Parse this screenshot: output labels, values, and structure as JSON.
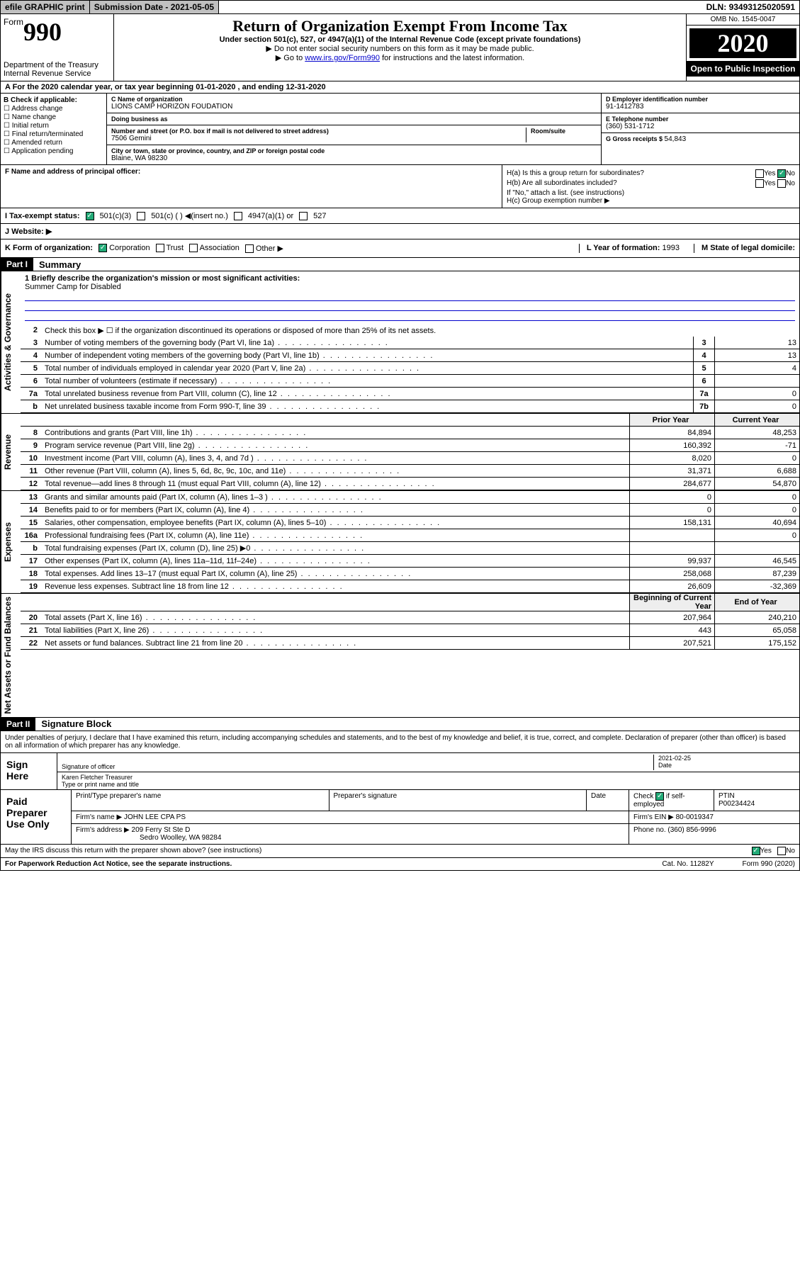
{
  "topbar": {
    "efile": "efile GRAPHIC print",
    "subdate_label": "Submission Date - ",
    "subdate": "2021-05-05",
    "dln_label": "DLN: ",
    "dln": "93493125020591"
  },
  "header": {
    "form_prefix": "Form",
    "form_number": "990",
    "dept": "Department of the Treasury",
    "irs": "Internal Revenue Service",
    "title": "Return of Organization Exempt From Income Tax",
    "subtitle": "Under section 501(c), 527, or 4947(a)(1) of the Internal Revenue Code (except private foundations)",
    "note1": "▶ Do not enter social security numbers on this form as it may be made public.",
    "note2_pre": "▶ Go to ",
    "note2_link": "www.irs.gov/Form990",
    "note2_post": " for instructions and the latest information.",
    "omb": "OMB No. 1545-0047",
    "year": "2020",
    "open": "Open to Public Inspection"
  },
  "rowA": "A For the 2020 calendar year, or tax year beginning 01-01-2020    , and ending 12-31-2020",
  "boxB": {
    "title": "B Check if applicable:",
    "items": [
      "Address change",
      "Name change",
      "Initial return",
      "Final return/terminated",
      "Amended return",
      "Application pending"
    ]
  },
  "boxC": {
    "name_lbl": "C Name of organization",
    "name": "LIONS CAMP HORIZON FOUDATION",
    "dba_lbl": "Doing business as",
    "dba": "",
    "street_lbl": "Number and street (or P.O. box if mail is not delivered to street address)",
    "room_lbl": "Room/suite",
    "street": "7506 Gemini",
    "city_lbl": "City or town, state or province, country, and ZIP or foreign postal code",
    "city": "Blaine, WA  98230"
  },
  "boxDE": {
    "d_lbl": "D Employer identification number",
    "d_val": "91-1412783",
    "e_lbl": "E Telephone number",
    "e_val": "(360) 531-1712",
    "g_lbl": "G Gross receipts $ ",
    "g_val": "54,843"
  },
  "boxF": {
    "lbl": "F Name and address of principal officer:",
    "val": ""
  },
  "boxH": {
    "ha": "H(a)  Is this a group return for subordinates?",
    "ha_yes": "Yes",
    "ha_no": "No",
    "hb": "H(b)  Are all subordinates included?",
    "hb_yes": "Yes",
    "hb_no": "No",
    "hb_note": "If \"No,\" attach a list. (see instructions)",
    "hc": "H(c)  Group exemption number ▶"
  },
  "rowI": {
    "lbl": "I   Tax-exempt status:",
    "opt1": "501(c)(3)",
    "opt2": "501(c) (   ) ◀(insert no.)",
    "opt3": "4947(a)(1) or",
    "opt4": "527"
  },
  "rowJ": "J   Website: ▶",
  "rowK": {
    "lbl": "K Form of organization:",
    "corp": "Corporation",
    "trust": "Trust",
    "assoc": "Association",
    "other": "Other ▶",
    "l_lbl": "L Year of formation: ",
    "l_val": "1993",
    "m_lbl": "M State of legal domicile:",
    "m_val": ""
  },
  "partI": {
    "label": "Part I",
    "title": "Summary"
  },
  "summary": {
    "side_gov": "Activities & Governance",
    "side_rev": "Revenue",
    "side_exp": "Expenses",
    "side_net": "Net Assets or Fund Balances",
    "l1_lbl": "1  Briefly describe the organization's mission or most significant activities:",
    "l1_val": "Summer Camp for Disabled",
    "l2": "Check this box ▶ ☐  if the organization discontinued its operations or disposed of more than 25% of its net assets.",
    "rows_gov": [
      {
        "n": "3",
        "t": "Number of voting members of the governing body (Part VI, line 1a)",
        "box": "3",
        "v": "13"
      },
      {
        "n": "4",
        "t": "Number of independent voting members of the governing body (Part VI, line 1b)",
        "box": "4",
        "v": "13"
      },
      {
        "n": "5",
        "t": "Total number of individuals employed in calendar year 2020 (Part V, line 2a)",
        "box": "5",
        "v": "4"
      },
      {
        "n": "6",
        "t": "Total number of volunteers (estimate if necessary)",
        "box": "6",
        "v": ""
      },
      {
        "n": "7a",
        "t": "Total unrelated business revenue from Part VIII, column (C), line 12",
        "box": "7a",
        "v": "0"
      },
      {
        "n": "b",
        "t": "Net unrelated business taxable income from Form 990-T, line 39",
        "box": "7b",
        "v": "0"
      }
    ],
    "yr_prior": "Prior Year",
    "yr_curr": "Current Year",
    "rows_rev": [
      {
        "n": "8",
        "t": "Contributions and grants (Part VIII, line 1h)",
        "p": "84,894",
        "c": "48,253"
      },
      {
        "n": "9",
        "t": "Program service revenue (Part VIII, line 2g)",
        "p": "160,392",
        "c": "-71"
      },
      {
        "n": "10",
        "t": "Investment income (Part VIII, column (A), lines 3, 4, and 7d )",
        "p": "8,020",
        "c": "0"
      },
      {
        "n": "11",
        "t": "Other revenue (Part VIII, column (A), lines 5, 6d, 8c, 9c, 10c, and 11e)",
        "p": "31,371",
        "c": "6,688"
      },
      {
        "n": "12",
        "t": "Total revenue—add lines 8 through 11 (must equal Part VIII, column (A), line 12)",
        "p": "284,677",
        "c": "54,870"
      }
    ],
    "rows_exp": [
      {
        "n": "13",
        "t": "Grants and similar amounts paid (Part IX, column (A), lines 1–3 )",
        "p": "0",
        "c": "0"
      },
      {
        "n": "14",
        "t": "Benefits paid to or for members (Part IX, column (A), line 4)",
        "p": "0",
        "c": "0"
      },
      {
        "n": "15",
        "t": "Salaries, other compensation, employee benefits (Part IX, column (A), lines 5–10)",
        "p": "158,131",
        "c": "40,694"
      },
      {
        "n": "16a",
        "t": "Professional fundraising fees (Part IX, column (A), line 11e)",
        "p": "",
        "c": "0"
      },
      {
        "n": "b",
        "t": "Total fundraising expenses (Part IX, column (D), line 25) ▶0",
        "p": "",
        "c": ""
      },
      {
        "n": "17",
        "t": "Other expenses (Part IX, column (A), lines 11a–11d, 11f–24e)",
        "p": "99,937",
        "c": "46,545"
      },
      {
        "n": "18",
        "t": "Total expenses. Add lines 13–17 (must equal Part IX, column (A), line 25)",
        "p": "258,068",
        "c": "87,239"
      },
      {
        "n": "19",
        "t": "Revenue less expenses. Subtract line 18 from line 12",
        "p": "26,609",
        "c": "-32,369"
      }
    ],
    "yr_begin": "Beginning of Current Year",
    "yr_end": "End of Year",
    "rows_net": [
      {
        "n": "20",
        "t": "Total assets (Part X, line 16)",
        "p": "207,964",
        "c": "240,210"
      },
      {
        "n": "21",
        "t": "Total liabilities (Part X, line 26)",
        "p": "443",
        "c": "65,058"
      },
      {
        "n": "22",
        "t": "Net assets or fund balances. Subtract line 21 from line 20",
        "p": "207,521",
        "c": "175,152"
      }
    ]
  },
  "partII": {
    "label": "Part II",
    "title": "Signature Block"
  },
  "penalty": "Under penalties of perjury, I declare that I have examined this return, including accompanying schedules and statements, and to the best of my knowledge and belief, it is true, correct, and complete. Declaration of preparer (other than officer) is based on all information of which preparer has any knowledge.",
  "sign": {
    "here": "Sign Here",
    "sig_lbl": "Signature of officer",
    "date_val": "2021-02-25",
    "date_lbl": "Date",
    "name": "Karen Fletcher Treasurer",
    "name_lbl": "Type or print name and title"
  },
  "prep": {
    "label": "Paid Preparer Use Only",
    "h1": "Print/Type preparer's name",
    "h2": "Preparer's signature",
    "h3": "Date",
    "h4_pre": "Check",
    "h4_post": "if self-employed",
    "h5": "PTIN",
    "ptin": "P00234424",
    "firm_lbl": "Firm's name   ▶",
    "firm": "JOHN LEE CPA PS",
    "ein_lbl": "Firm's EIN ▶",
    "ein": "80-0019347",
    "addr_lbl": "Firm's address ▶",
    "addr1": "209 Ferry St Ste D",
    "addr2": "Sedro Woolley, WA  98284",
    "phone_lbl": "Phone no. ",
    "phone": "(360) 856-9996"
  },
  "discuss": {
    "q": "May the IRS discuss this return with the preparer shown above? (see instructions)",
    "yes": "Yes",
    "no": "No"
  },
  "footer": {
    "pra": "For Paperwork Reduction Act Notice, see the separate instructions.",
    "cat": "Cat. No. 11282Y",
    "form": "Form 990 (2020)"
  }
}
